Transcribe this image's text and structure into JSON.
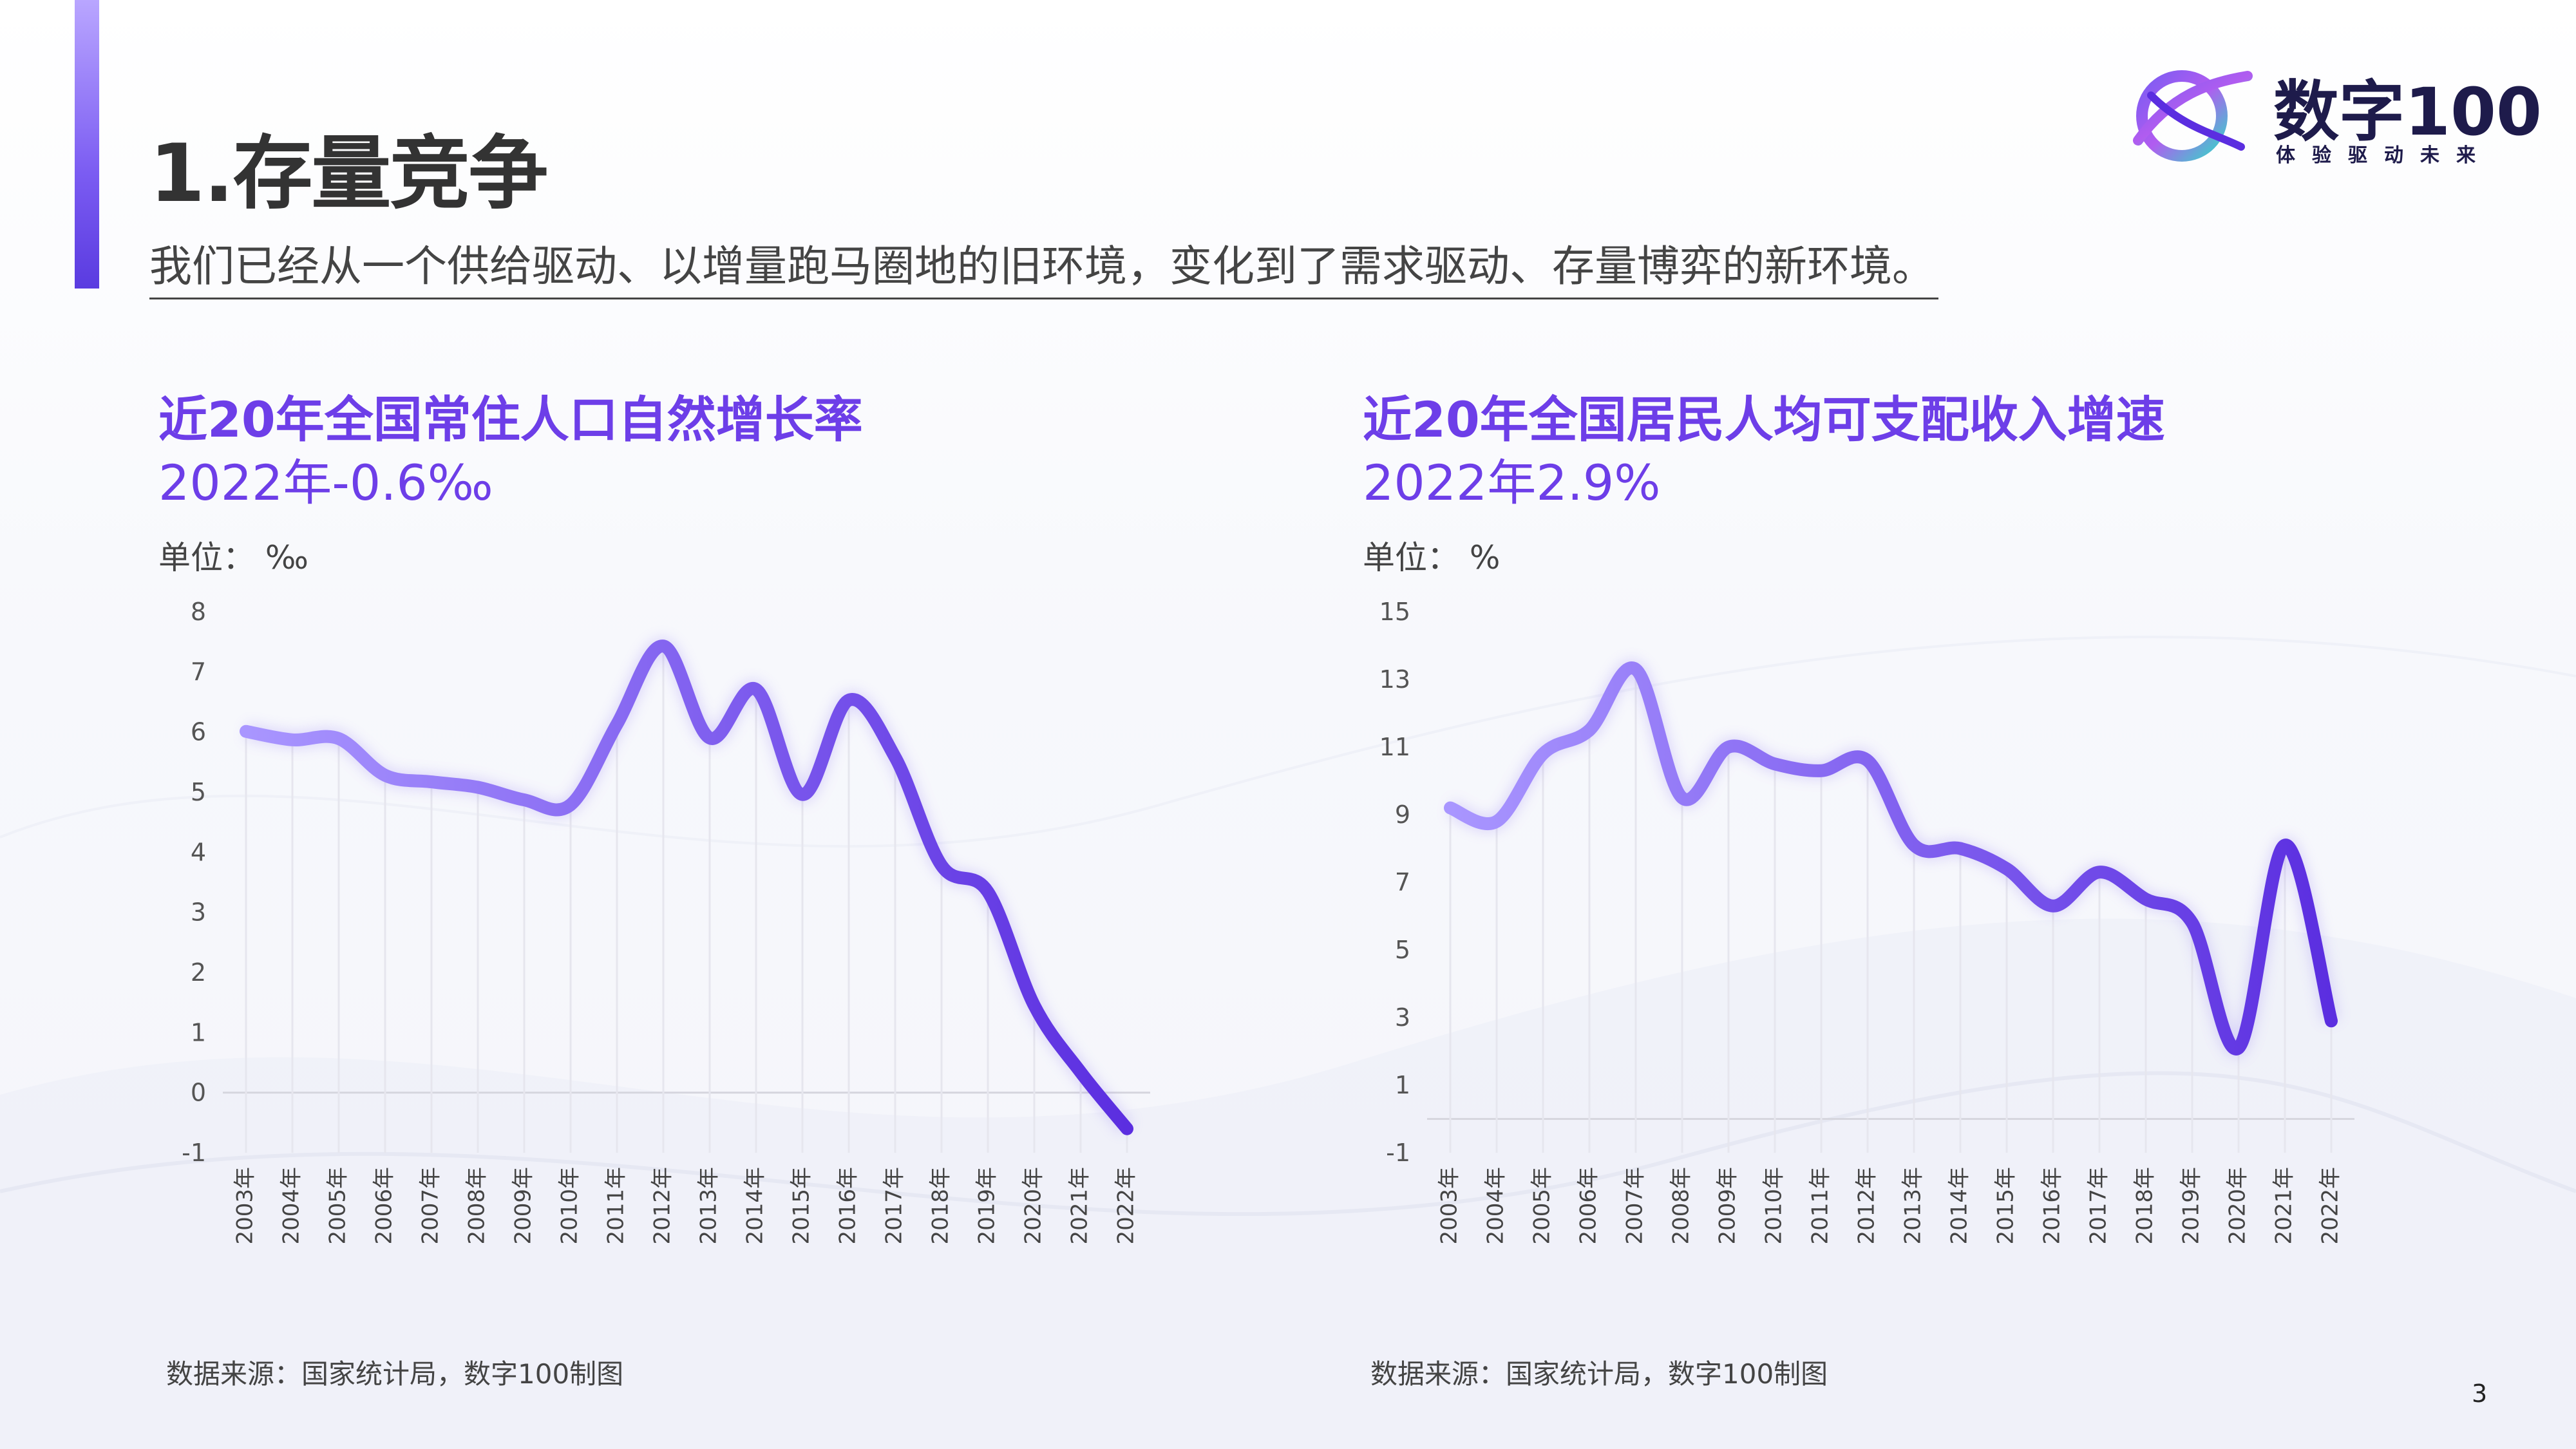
{
  "page": {
    "title": "1.存量竞争",
    "subtitle": "我们已经从一个供给驱动、以增量跑马圈地的旧环境，变化到了需求驱动、存量博弈的新环境。",
    "page_number": "3"
  },
  "logo": {
    "name": "数字100",
    "tagline": "体验驱动未来"
  },
  "colors": {
    "accent": "#6d3ee8",
    "line_start": "#a996ff",
    "line_end": "#5b2ee0",
    "bar": "#7b5cf2"
  },
  "charts": [
    {
      "title": "近20年全国常住人口自然增长率",
      "subtitle": "2022年-0.6‰",
      "unit": "单位：  ‰",
      "source": "数据来源：国家统计局，数字100制图"
    },
    {
      "title": "近20年全国居民人均可支配收入增速",
      "subtitle": "2022年2.9%",
      "unit": "单位：  %",
      "source": "数据来源：国家统计局，数字100制图"
    }
  ],
  "chart_data": [
    {
      "type": "line",
      "title": "近20年全国常住人口自然增长率",
      "categories": [
        "2003年",
        "2004年",
        "2005年",
        "2006年",
        "2007年",
        "2008年",
        "2009年",
        "2010年",
        "2011年",
        "2012年",
        "2013年",
        "2014年",
        "2015年",
        "2016年",
        "2017年",
        "2018年",
        "2019年",
        "2020年",
        "2021年",
        "2022年"
      ],
      "values": [
        6.01,
        5.87,
        5.89,
        5.28,
        5.17,
        5.08,
        4.87,
        4.79,
        6.13,
        7.43,
        5.9,
        6.71,
        4.96,
        6.53,
        5.58,
        3.78,
        3.34,
        1.45,
        0.34,
        -0.6
      ],
      "yticks": [
        -1,
        0,
        1,
        2,
        3,
        4,
        5,
        6,
        7,
        8
      ],
      "ylim": [
        -1,
        8
      ],
      "grid": "vertical"
    },
    {
      "type": "line",
      "title": "近20年全国居民人均可支配收入增速",
      "categories": [
        "2003年",
        "2004年",
        "2005年",
        "2006年",
        "2007年",
        "2008年",
        "2009年",
        "2010年",
        "2011年",
        "2012年",
        "2013年",
        "2014年",
        "2015年",
        "2016年",
        "2017年",
        "2018年",
        "2019年",
        "2020年",
        "2021年",
        "2022年"
      ],
      "values": [
        9.2,
        8.8,
        10.8,
        11.5,
        13.3,
        9.5,
        11.0,
        10.5,
        10.3,
        10.6,
        8.1,
        8.0,
        7.4,
        6.3,
        7.3,
        6.5,
        5.8,
        2.1,
        8.1,
        2.9
      ],
      "yticks": [
        -1,
        1,
        3,
        5,
        7,
        9,
        11,
        13,
        15
      ],
      "ylim": [
        -1,
        15
      ],
      "grid": "vertical"
    }
  ]
}
